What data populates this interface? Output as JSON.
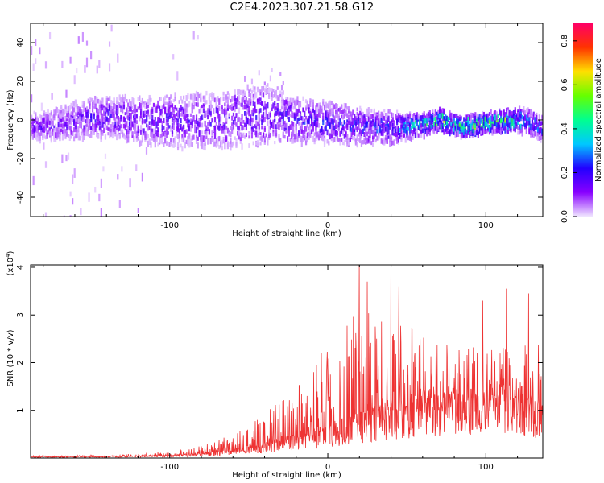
{
  "title": "C2E4.2023.307.21.58.G12",
  "chart_data": [
    {
      "type": "heatmap",
      "xlabel": "Height of straight line (km)",
      "ylabel": "Frequency (Hz)",
      "xlim": [
        -188,
        136
      ],
      "ylim": [
        -50,
        50
      ],
      "xticks": [
        -100,
        0,
        100
      ],
      "yticks": [
        -40,
        -20,
        0,
        20,
        40
      ],
      "grid": false,
      "colorbar": {
        "label": "Normalized spectral amplitude",
        "range": [
          0,
          0.88
        ],
        "ticks": [
          0.0,
          0.2,
          0.4,
          0.6,
          0.8
        ],
        "colormap": [
          "#f0e6ff",
          "#8800ff",
          "#2200ff",
          "#00c8ff",
          "#00ff90",
          "#66ff00",
          "#ffe000",
          "#ff3300",
          "#ff0066"
        ]
      },
      "band": [
        {
          "x": -180,
          "center": -3,
          "halfwidth": 5,
          "amp": 0.15
        },
        {
          "x": -160,
          "center": 0,
          "halfwidth": 7,
          "amp": 0.16
        },
        {
          "x": -140,
          "center": 2,
          "halfwidth": 8,
          "amp": 0.18
        },
        {
          "x": -120,
          "center": 0,
          "halfwidth": 9,
          "amp": 0.18
        },
        {
          "x": -100,
          "center": 0,
          "halfwidth": 10,
          "amp": 0.17
        },
        {
          "x": -80,
          "center": 0,
          "halfwidth": 11,
          "amp": 0.17
        },
        {
          "x": -60,
          "center": 1,
          "halfwidth": 11,
          "amp": 0.17
        },
        {
          "x": -40,
          "center": 3,
          "halfwidth": 12,
          "amp": 0.18
        },
        {
          "x": -20,
          "center": 0,
          "halfwidth": 9,
          "amp": 0.2
        },
        {
          "x": 0,
          "center": -1,
          "halfwidth": 8,
          "amp": 0.22
        },
        {
          "x": 20,
          "center": -3,
          "halfwidth": 7,
          "amp": 0.22
        },
        {
          "x": 40,
          "center": -4,
          "halfwidth": 6,
          "amp": 0.25
        },
        {
          "x": 60,
          "center": -2,
          "halfwidth": 4,
          "amp": 0.45
        },
        {
          "x": 70,
          "center": 0,
          "halfwidth": 4,
          "amp": 0.55
        },
        {
          "x": 85,
          "center": -3,
          "halfwidth": 4,
          "amp": 0.55
        },
        {
          "x": 100,
          "center": -1,
          "halfwidth": 4,
          "amp": 0.45
        },
        {
          "x": 112,
          "center": 0,
          "halfwidth": 4,
          "amp": 0.55
        },
        {
          "x": 125,
          "center": 0,
          "halfwidth": 5,
          "amp": 0.3
        },
        {
          "x": 136,
          "center": -4,
          "halfwidth": 5,
          "amp": 0.25
        }
      ]
    },
    {
      "type": "line",
      "xlabel": "Height of straight line (km)",
      "ylabel": "SNR (10 * v/v)",
      "y_multiplier_label": "(x10",
      "y_multiplier_exp": "4",
      "y_multiplier_close": ")",
      "xlim": [
        -188,
        136
      ],
      "ylim": [
        0,
        4.05
      ],
      "xticks": [
        -100,
        0,
        100
      ],
      "yticks": [
        1,
        2,
        3,
        4
      ],
      "grid": false,
      "color": "#ee3333",
      "envelope": [
        {
          "x": -188,
          "base": 0.02,
          "peak": 0.05
        },
        {
          "x": -140,
          "base": 0.03,
          "peak": 0.06
        },
        {
          "x": -100,
          "base": 0.05,
          "peak": 0.15
        },
        {
          "x": -80,
          "base": 0.08,
          "peak": 0.25
        },
        {
          "x": -60,
          "base": 0.15,
          "peak": 0.5
        },
        {
          "x": -40,
          "base": 0.25,
          "peak": 0.9
        },
        {
          "x": -20,
          "base": 0.4,
          "peak": 1.6
        },
        {
          "x": 0,
          "base": 0.55,
          "peak": 2.4
        },
        {
          "x": 20,
          "base": 0.75,
          "peak": 3.1
        },
        {
          "x": 40,
          "base": 0.95,
          "peak": 3.0
        },
        {
          "x": 60,
          "base": 1.1,
          "peak": 2.7
        },
        {
          "x": 80,
          "base": 1.15,
          "peak": 2.4
        },
        {
          "x": 100,
          "base": 1.2,
          "peak": 2.5
        },
        {
          "x": 120,
          "base": 1.2,
          "peak": 2.7
        },
        {
          "x": 136,
          "base": 1.0,
          "peak": 2.4
        }
      ],
      "notable_peaks": [
        {
          "x": 20,
          "y": 4.05
        },
        {
          "x": 25,
          "y": 3.7
        },
        {
          "x": 40,
          "y": 3.85
        },
        {
          "x": 45,
          "y": 3.6
        },
        {
          "x": 98,
          "y": 3.3
        },
        {
          "x": 113,
          "y": 3.55
        },
        {
          "x": 127,
          "y": 3.45
        }
      ]
    }
  ]
}
